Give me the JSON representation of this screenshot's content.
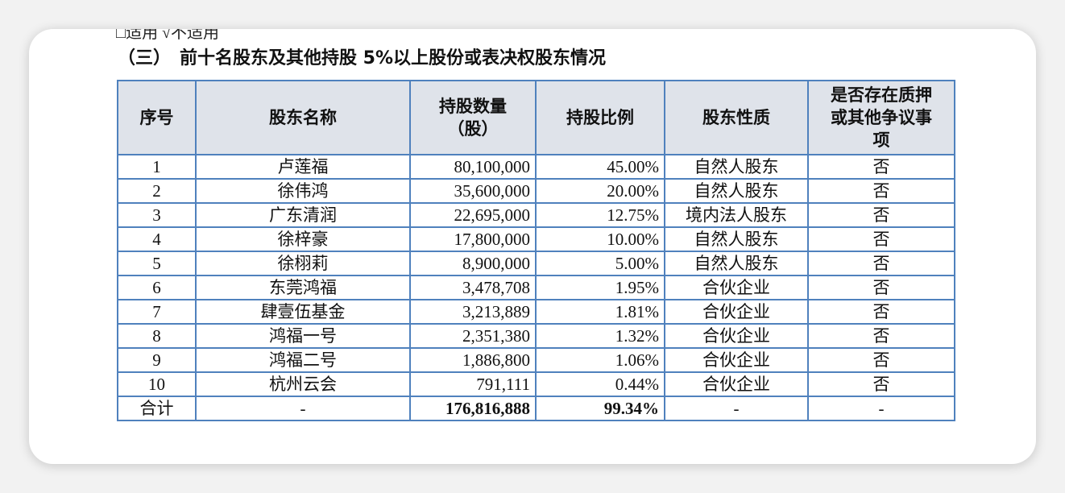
{
  "top_note": "□适用 √不适用",
  "section_title": "（三）　前十名股东及其他持股 5%以上股份或表决权股东情况",
  "table": {
    "headers": [
      "序号",
      "股东名称",
      "持股数量\n（股）",
      "持股比例",
      "股东性质",
      "是否存在质押\n或其他争议事\n项"
    ],
    "rows": [
      [
        "1",
        "卢莲福",
        "80,100,000",
        "45.00%",
        "自然人股东",
        "否"
      ],
      [
        "2",
        "徐伟鸿",
        "35,600,000",
        "20.00%",
        "自然人股东",
        "否"
      ],
      [
        "3",
        "广东清润",
        "22,695,000",
        "12.75%",
        "境内法人股东",
        "否"
      ],
      [
        "4",
        "徐梓豪",
        "17,800,000",
        "10.00%",
        "自然人股东",
        "否"
      ],
      [
        "5",
        "徐栩莉",
        "8,900,000",
        "5.00%",
        "自然人股东",
        "否"
      ],
      [
        "6",
        "东莞鸿福",
        "3,478,708",
        "1.95%",
        "合伙企业",
        "否"
      ],
      [
        "7",
        "肆壹伍基金",
        "3,213,889",
        "1.81%",
        "合伙企业",
        "否"
      ],
      [
        "8",
        "鸿福一号",
        "2,351,380",
        "1.32%",
        "合伙企业",
        "否"
      ],
      [
        "9",
        "鸿福二号",
        "1,886,800",
        "1.06%",
        "合伙企业",
        "否"
      ],
      [
        "10",
        "杭州云会",
        "791,111",
        "0.44%",
        "合伙企业",
        "否"
      ]
    ],
    "total": [
      "合计",
      "-",
      "176,816,888",
      "99.34%",
      "-",
      "-"
    ]
  }
}
